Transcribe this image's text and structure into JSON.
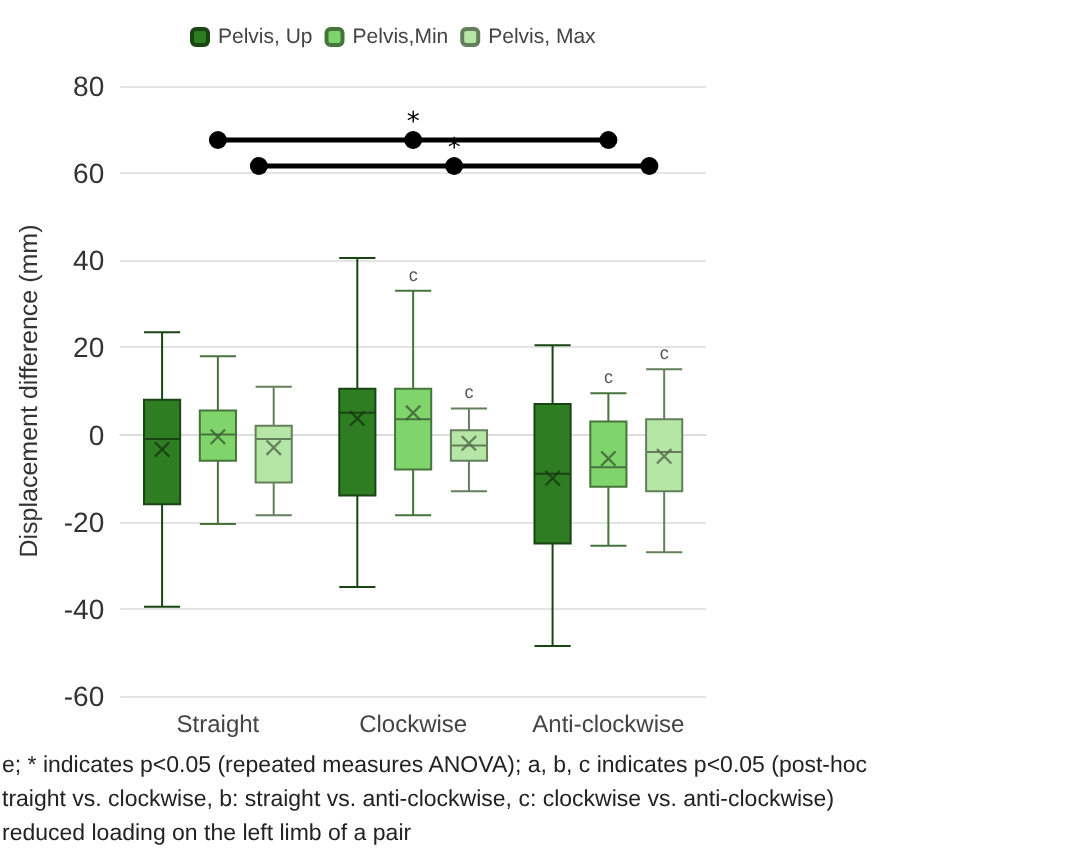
{
  "chart_data": {
    "type": "box",
    "ylabel": "Displacement difference (mm)",
    "categories": [
      "Straight",
      "Clockwise",
      "Anti-clockwise"
    ],
    "series": [
      {
        "name": "Pelvis, Up",
        "color": "#2e7d22",
        "boxes": [
          {
            "low": -39.5,
            "q1": -16,
            "median": -1,
            "q3": 8,
            "high": 23.5,
            "mean": -3.4
          },
          {
            "low": -35,
            "q1": -14,
            "median": 5,
            "q3": 10.5,
            "high": 40.5,
            "mean": 3.7
          },
          {
            "low": -48.5,
            "q1": -25,
            "median": -9,
            "q3": 7,
            "high": 20.5,
            "mean": -10
          }
        ]
      },
      {
        "name": "Pelvis,Min",
        "color": "#80d46c",
        "boxes": [
          {
            "low": -20.5,
            "q1": -6,
            "median": 0,
            "q3": 5.5,
            "high": 18,
            "mean": -0.5
          },
          {
            "low": -18.5,
            "q1": -8,
            "median": 3.5,
            "q3": 10.5,
            "high": 33,
            "mean": 5
          },
          {
            "low": -25.5,
            "q1": -12,
            "median": -7.5,
            "q3": 3,
            "high": 9.5,
            "mean": -5.5
          }
        ]
      },
      {
        "name": "Pelvis, Max",
        "color": "#b6e6a6",
        "boxes": [
          {
            "low": -18.5,
            "q1": -11,
            "median": -1,
            "q3": 2,
            "high": 11,
            "mean": -3
          },
          {
            "low": -13,
            "q1": -6,
            "median": -2.5,
            "q3": 1,
            "high": 6,
            "mean": -2
          },
          {
            "low": -27,
            "q1": -13,
            "median": -4,
            "q3": 3.5,
            "high": 15,
            "mean": -5
          }
        ]
      }
    ],
    "ylim": [
      -60,
      80
    ],
    "yticks": [
      -60,
      -40,
      -20,
      0,
      20,
      40,
      60,
      80
    ],
    "grid": "y",
    "legend": "top",
    "annotations": [
      "*",
      "*",
      {
        "text": "c",
        "y": 33
      },
      {
        "text": "c",
        "y": 6
      },
      {
        "text": "c",
        "y": 9.5
      },
      {
        "text": "c",
        "y": 15
      },
      "e; * indicates p<0.05 (repeated measures ANOVA); a, b, c indicates p<0.05 (post-hoc",
      "traight vs. clockwise, b: straight vs. anti-clockwise, c: clockwise vs. anti-clockwise)",
      "reduced loading on the left limb of a pair"
    ]
  }
}
